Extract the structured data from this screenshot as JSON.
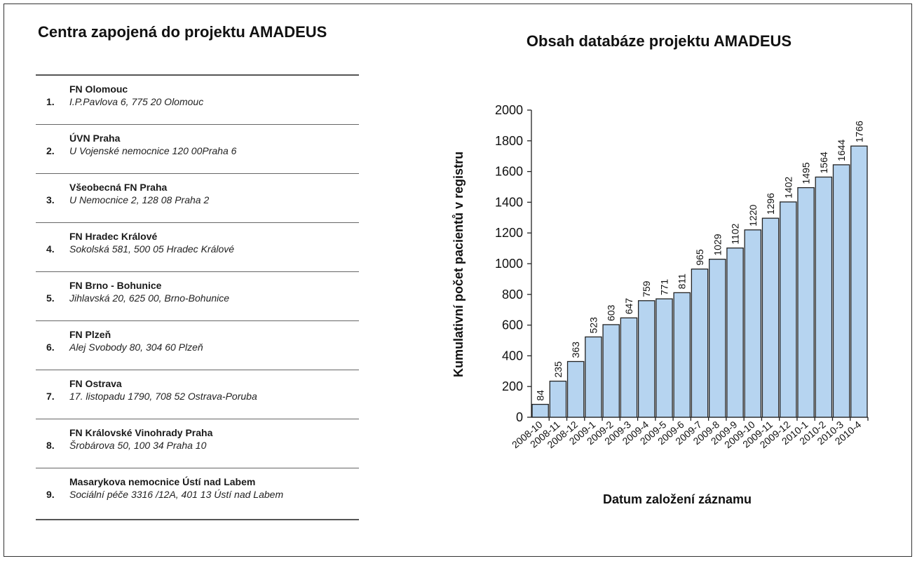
{
  "left_panel": {
    "title": "Centra zapojená do projektu AMADEUS",
    "centers": [
      {
        "number": "1.",
        "name": "FN Olomouc",
        "address": "I.P.Pavlova 6, 775 20 Olomouc"
      },
      {
        "number": "2.",
        "name": "ÚVN Praha",
        "address": "U Vojenské nemocnice 120 00Praha 6"
      },
      {
        "number": "3.",
        "name": "Všeobecná FN Praha",
        "address": "U Nemocnice 2, 128 08 Praha 2"
      },
      {
        "number": "4.",
        "name": "FN Hradec Králové",
        "address": "Sokolská 581, 500 05 Hradec Králové"
      },
      {
        "number": "5.",
        "name": "FN Brno - Bohunice",
        "address": "Jihlavská 20, 625 00, Brno-Bohunice"
      },
      {
        "number": "6.",
        "name": "FN Plzeň",
        "address": "Alej Svobody 80, 304 60 Plzeň"
      },
      {
        "number": "7.",
        "name": "FN Ostrava",
        "address": "17. listopadu 1790, 708 52 Ostrava-Poruba"
      },
      {
        "number": "8.",
        "name": "FN Královské Vinohrady Praha",
        "address": "Šrobárova 50, 100 34 Praha 10"
      },
      {
        "number": "9.",
        "name": "Masarykova nemocnice Ústí nad Labem",
        "address": "Sociální péče 3316 /12A, 401 13 Ústí nad Labem"
      }
    ]
  },
  "chart_data": {
    "type": "bar",
    "title": "Obsah databáze projektu AMADEUS",
    "xlabel": "Datum založení záznamu",
    "ylabel": "Kumulativní počet pacientů v registru",
    "categories": [
      "2008-10",
      "2008-11",
      "2008-12",
      "2009-1",
      "2009-2",
      "2009-3",
      "2009-4",
      "2009-5",
      "2009-6",
      "2009-7",
      "2009-8",
      "2009-9",
      "2009-10",
      "2009-11",
      "2009-12",
      "2010-1",
      "2010-2",
      "2010-3",
      "2010-4"
    ],
    "values": [
      84,
      235,
      363,
      523,
      603,
      647,
      759,
      771,
      811,
      965,
      1029,
      1102,
      1220,
      1296,
      1402,
      1495,
      1564,
      1644,
      1766
    ],
    "ylim": [
      0,
      2000
    ],
    "yticks": [
      0,
      200,
      400,
      600,
      800,
      1000,
      1200,
      1400,
      1600,
      1800,
      2000
    ],
    "grid": false,
    "legend": "none",
    "bar_color": "#b6d4f0",
    "bar_edge_color": "#222222"
  }
}
